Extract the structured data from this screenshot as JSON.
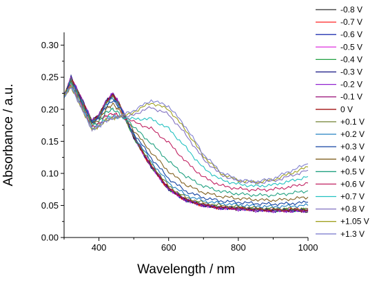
{
  "chart_data": {
    "type": "line",
    "xlabel": "Wavelength / nm",
    "ylabel": "Absorbance / a.u.",
    "xlim": [
      300,
      1000
    ],
    "ylim": [
      0.0,
      0.32
    ],
    "xticks": [
      400,
      600,
      800,
      1000
    ],
    "xtick_labels": [
      "400",
      "600",
      "800",
      "1000"
    ],
    "yticks": [
      0.0,
      0.05,
      0.1,
      0.15,
      0.2,
      0.25,
      0.3
    ],
    "ytick_labels": [
      "0.00",
      "0.05",
      "0.10",
      "0.15",
      "0.20",
      "0.25",
      "0.30"
    ],
    "grid": false,
    "legend_position": "right, outside plot",
    "x": [
      300,
      320,
      350,
      380,
      400,
      420,
      440,
      460,
      500,
      550,
      600,
      650,
      700,
      750,
      800,
      850,
      900,
      950,
      1000
    ],
    "series": [
      {
        "name": "-0.8 V",
        "color": "#2b2b2b",
        "values": [
          0.22,
          0.248,
          0.215,
          0.18,
          0.19,
          0.21,
          0.222,
          0.205,
          0.155,
          0.11,
          0.075,
          0.058,
          0.05,
          0.046,
          0.045,
          0.043,
          0.042,
          0.042,
          0.04
        ]
      },
      {
        "name": "-0.7 V",
        "color": "#ff2020",
        "values": [
          0.22,
          0.248,
          0.215,
          0.18,
          0.19,
          0.21,
          0.222,
          0.205,
          0.155,
          0.11,
          0.075,
          0.058,
          0.05,
          0.046,
          0.046,
          0.044,
          0.043,
          0.044,
          0.045
        ]
      },
      {
        "name": "-0.6 V",
        "color": "#2030b0",
        "values": [
          0.22,
          0.249,
          0.216,
          0.181,
          0.19,
          0.211,
          0.223,
          0.206,
          0.156,
          0.11,
          0.075,
          0.058,
          0.05,
          0.046,
          0.045,
          0.043,
          0.042,
          0.042,
          0.042
        ]
      },
      {
        "name": "-0.5 V",
        "color": "#e040e0",
        "values": [
          0.22,
          0.249,
          0.216,
          0.181,
          0.19,
          0.211,
          0.223,
          0.206,
          0.156,
          0.11,
          0.075,
          0.058,
          0.05,
          0.046,
          0.045,
          0.043,
          0.042,
          0.043,
          0.043
        ]
      },
      {
        "name": "-0.4 V",
        "color": "#20a040",
        "values": [
          0.22,
          0.248,
          0.215,
          0.18,
          0.19,
          0.21,
          0.222,
          0.205,
          0.156,
          0.111,
          0.076,
          0.059,
          0.051,
          0.047,
          0.046,
          0.044,
          0.043,
          0.043,
          0.043
        ]
      },
      {
        "name": "-0.3 V",
        "color": "#101080",
        "values": [
          0.22,
          0.25,
          0.217,
          0.182,
          0.191,
          0.212,
          0.224,
          0.207,
          0.157,
          0.111,
          0.076,
          0.058,
          0.05,
          0.046,
          0.045,
          0.043,
          0.042,
          0.042,
          0.042
        ]
      },
      {
        "name": "-0.2 V",
        "color": "#9020d0",
        "values": [
          0.22,
          0.25,
          0.217,
          0.182,
          0.191,
          0.212,
          0.225,
          0.208,
          0.158,
          0.112,
          0.076,
          0.058,
          0.05,
          0.046,
          0.044,
          0.042,
          0.041,
          0.041,
          0.041
        ]
      },
      {
        "name": "-0.1 V",
        "color": "#a02080",
        "values": [
          0.22,
          0.249,
          0.216,
          0.181,
          0.19,
          0.211,
          0.223,
          0.207,
          0.157,
          0.111,
          0.076,
          0.058,
          0.05,
          0.046,
          0.045,
          0.043,
          0.042,
          0.042,
          0.042
        ]
      },
      {
        "name": "0 V",
        "color": "#a01010",
        "values": [
          0.22,
          0.248,
          0.215,
          0.18,
          0.19,
          0.21,
          0.222,
          0.206,
          0.157,
          0.112,
          0.077,
          0.059,
          0.051,
          0.047,
          0.046,
          0.044,
          0.043,
          0.043,
          0.043
        ]
      },
      {
        "name": "+0.1 V",
        "color": "#708030",
        "values": [
          0.22,
          0.247,
          0.214,
          0.18,
          0.189,
          0.209,
          0.22,
          0.205,
          0.158,
          0.115,
          0.08,
          0.062,
          0.054,
          0.05,
          0.048,
          0.046,
          0.045,
          0.045,
          0.045
        ]
      },
      {
        "name": "+0.2 V",
        "color": "#2080c0",
        "values": [
          0.22,
          0.246,
          0.213,
          0.179,
          0.188,
          0.207,
          0.218,
          0.204,
          0.16,
          0.118,
          0.085,
          0.066,
          0.057,
          0.053,
          0.051,
          0.049,
          0.048,
          0.049,
          0.05
        ]
      },
      {
        "name": "+0.3 V",
        "color": "#1040a0",
        "values": [
          0.22,
          0.245,
          0.212,
          0.178,
          0.186,
          0.204,
          0.214,
          0.202,
          0.163,
          0.124,
          0.092,
          0.072,
          0.062,
          0.057,
          0.055,
          0.053,
          0.052,
          0.053,
          0.055
        ]
      },
      {
        "name": "+0.4 V",
        "color": "#806020",
        "values": [
          0.22,
          0.243,
          0.21,
          0.176,
          0.183,
          0.2,
          0.208,
          0.198,
          0.167,
          0.133,
          0.103,
          0.082,
          0.07,
          0.064,
          0.061,
          0.059,
          0.058,
          0.06,
          0.063
        ]
      },
      {
        "name": "+0.5 V",
        "color": "#20a080",
        "values": [
          0.22,
          0.241,
          0.208,
          0.174,
          0.18,
          0.195,
          0.2,
          0.193,
          0.172,
          0.147,
          0.119,
          0.095,
          0.08,
          0.072,
          0.068,
          0.066,
          0.066,
          0.069,
          0.073
        ]
      },
      {
        "name": "+0.6 V",
        "color": "#c02060",
        "values": [
          0.22,
          0.239,
          0.206,
          0.172,
          0.177,
          0.19,
          0.193,
          0.19,
          0.18,
          0.17,
          0.148,
          0.118,
          0.094,
          0.081,
          0.076,
          0.074,
          0.075,
          0.079,
          0.085
        ]
      },
      {
        "name": "+0.7 V",
        "color": "#20c0c0",
        "values": [
          0.22,
          0.237,
          0.204,
          0.17,
          0.175,
          0.186,
          0.189,
          0.188,
          0.185,
          0.185,
          0.17,
          0.14,
          0.108,
          0.09,
          0.083,
          0.08,
          0.082,
          0.088,
          0.095
        ]
      },
      {
        "name": "+0.8 V",
        "color": "#8070c0",
        "values": [
          0.22,
          0.236,
          0.203,
          0.169,
          0.174,
          0.184,
          0.187,
          0.188,
          0.192,
          0.203,
          0.192,
          0.16,
          0.122,
          0.098,
          0.088,
          0.085,
          0.088,
          0.096,
          0.105
        ]
      },
      {
        "name": "+1.05 V",
        "color": "#a0a020",
        "values": [
          0.22,
          0.235,
          0.202,
          0.168,
          0.173,
          0.183,
          0.186,
          0.188,
          0.196,
          0.21,
          0.2,
          0.167,
          0.127,
          0.1,
          0.089,
          0.086,
          0.09,
          0.1,
          0.11
        ]
      },
      {
        "name": "+1.3 V",
        "color": "#8080d0",
        "values": [
          0.22,
          0.235,
          0.202,
          0.168,
          0.173,
          0.182,
          0.186,
          0.189,
          0.198,
          0.214,
          0.205,
          0.172,
          0.13,
          0.102,
          0.09,
          0.087,
          0.092,
          0.104,
          0.115
        ]
      }
    ]
  }
}
